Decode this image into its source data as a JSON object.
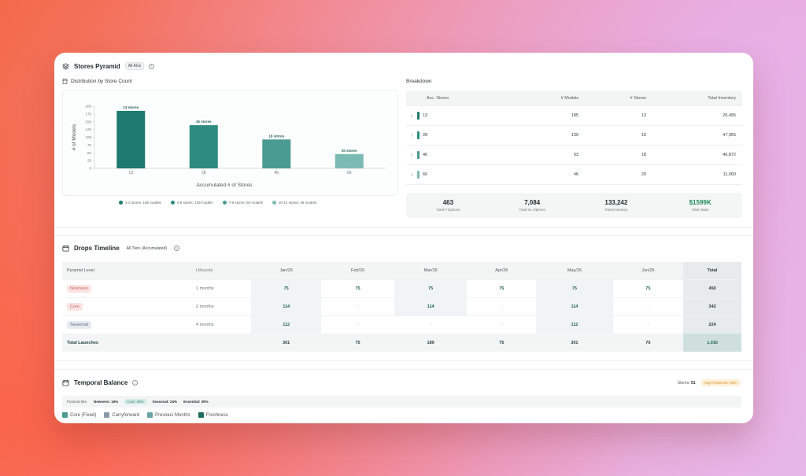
{
  "stores_pyramid": {
    "title": "Stores Pyramid",
    "filter": "All AGs",
    "distribution_title": "Distribution by Store Count",
    "legend": [
      {
        "label": "1-3 stores: 185 models",
        "color": "#1e7a70"
      },
      {
        "label": "4-6 stores: 139 models",
        "color": "#2e8b80"
      },
      {
        "label": "7-9 stores: 93 models",
        "color": "#4a9b92"
      },
      {
        "label": "10-12 stores: 46 models",
        "color": "#7cbbb3"
      }
    ]
  },
  "chart_data": {
    "type": "bar",
    "categories": [
      "13",
      "28",
      "46",
      "66"
    ],
    "values": [
      185,
      139,
      93,
      46
    ],
    "data_labels": [
      "13 stores",
      "15 stores",
      "18 stores",
      "20 stores"
    ],
    "colors": [
      "#1e7a70",
      "#2e8b80",
      "#4a9b92",
      "#7cbbb3"
    ],
    "xlabel": "Accumulated # of Stores",
    "ylabel": "# of Models",
    "yticks": [
      0,
      25,
      50,
      75,
      100,
      125,
      150,
      175,
      200
    ],
    "ylim": [
      0,
      200
    ]
  },
  "breakdown": {
    "title": "Breakdown",
    "columns": [
      "Acc. Stores",
      "# Models",
      "# Stores",
      "Total Inventory"
    ],
    "rows": [
      {
        "acc": "13",
        "models": "185",
        "stores": "13",
        "inventory": "26,455",
        "color": "#1e7a70"
      },
      {
        "acc": "28",
        "models": "139",
        "stores": "15",
        "inventory": "47,955",
        "color": "#2e8b80"
      },
      {
        "acc": "46",
        "models": "93",
        "stores": "18",
        "inventory": "46,872",
        "color": "#4a9b92"
      },
      {
        "acc": "66",
        "models": "46",
        "stores": "20",
        "inventory": "11,960",
        "color": "#7cbbb3"
      }
    ],
    "totals": [
      {
        "value": "463",
        "label": "Total # Options"
      },
      {
        "value": "7,084",
        "label": "Total SL-Options"
      },
      {
        "value": "133,242",
        "label": "Total Inventory"
      },
      {
        "value": "$1599K",
        "label": "Total Value"
      }
    ]
  },
  "drops": {
    "title": "Drops Timeline",
    "filter": "All Tiers (Accumulated)",
    "headers": [
      "Pyramid Level",
      "Lifecycle",
      "Jan/26",
      "Feb/26",
      "Mar/26",
      "Apr/26",
      "May/26",
      "Jun/26",
      "Total"
    ],
    "rows": [
      {
        "level": "Newness",
        "lifecycle": "1 months",
        "cells": [
          "75",
          "75",
          "75",
          "75",
          "75",
          "75"
        ],
        "total": "450"
      },
      {
        "level": "Core",
        "lifecycle": "2 months",
        "cells": [
          "114",
          "-",
          "114",
          "-",
          "114",
          "-"
        ],
        "total": "342"
      },
      {
        "level": "Seasonal",
        "lifecycle": "4 months",
        "cells": [
          "112",
          "-",
          "-",
          "-",
          "112",
          "-"
        ],
        "total": "224"
      }
    ],
    "launch_label": "Total Launches",
    "launches": [
      "301",
      "75",
      "189",
      "75",
      "301",
      "75"
    ],
    "launch_total": "1,016"
  },
  "temporal": {
    "title": "Temporal Balance",
    "stores_label": "Stores:",
    "stores_value": "51",
    "freshness_pill": "Avg Freshness: 35%",
    "mix_label": "Pyramid Mix:",
    "mix": {
      "newness": "Newness: 16%",
      "core": "Core: 25%",
      "seasonal": "Seasonal: 24%",
      "essential": "Essential: 35%"
    },
    "legend": [
      {
        "label": "Core (Fixed)",
        "color": "#4a9b92"
      },
      {
        "label": "Carryforward",
        "color": "#8a99a6"
      },
      {
        "label": "Previous Months",
        "color": "#6aa3a6"
      },
      {
        "label": "Freshness",
        "color": "#1e6b5f"
      }
    ]
  }
}
